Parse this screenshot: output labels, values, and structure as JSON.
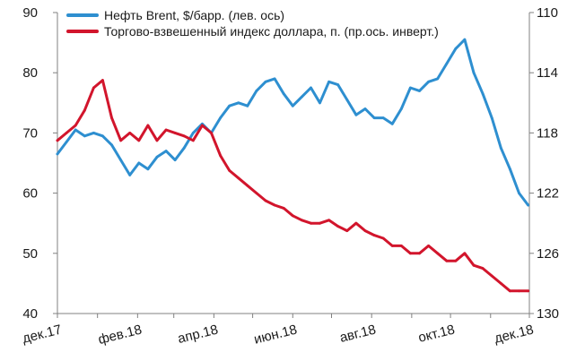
{
  "chart_data": {
    "type": "line",
    "title": "",
    "xlabel": "",
    "ylabel": "",
    "y2label": "",
    "x_ticks": [
      "дек.17",
      "фев.18",
      "апр.18",
      "июн.18",
      "авг.18",
      "окт.18",
      "дек.18"
    ],
    "y_left": {
      "ticks": [
        40,
        50,
        60,
        70,
        80,
        90
      ],
      "range": [
        40,
        90
      ]
    },
    "y_right": {
      "ticks": [
        110,
        114,
        118,
        122,
        126,
        130
      ],
      "range": [
        110,
        130
      ],
      "inverted": true
    },
    "legend_position": "top-left",
    "series": [
      {
        "name": "Нефть Brent, $/барр. (лев. ось)",
        "color": "#2e8fd0",
        "axis": "left",
        "x": [
          "2017-12-01",
          "2017-12-08",
          "2017-12-15",
          "2017-12-22",
          "2017-12-29",
          "2018-01-05",
          "2018-01-12",
          "2018-01-19",
          "2018-01-26",
          "2018-02-02",
          "2018-02-09",
          "2018-02-16",
          "2018-02-23",
          "2018-03-02",
          "2018-03-09",
          "2018-03-16",
          "2018-03-23",
          "2018-03-30",
          "2018-04-06",
          "2018-04-13",
          "2018-04-20",
          "2018-04-27",
          "2018-05-04",
          "2018-05-11",
          "2018-05-18",
          "2018-05-25",
          "2018-06-01",
          "2018-06-08",
          "2018-06-15",
          "2018-06-22",
          "2018-06-29",
          "2018-07-06",
          "2018-07-13",
          "2018-07-20",
          "2018-07-27",
          "2018-08-03",
          "2018-08-10",
          "2018-08-17",
          "2018-08-24",
          "2018-08-31",
          "2018-09-07",
          "2018-09-14",
          "2018-09-21",
          "2018-09-28",
          "2018-10-05",
          "2018-10-12",
          "2018-10-19",
          "2018-10-26",
          "2018-11-02",
          "2018-11-09",
          "2018-11-16",
          "2018-11-23",
          "2018-11-30"
        ],
        "values": [
          66.5,
          68.5,
          70.5,
          69.5,
          70.0,
          69.5,
          68.0,
          65.5,
          63.0,
          65.0,
          64.0,
          66.0,
          67.0,
          65.5,
          67.5,
          70.0,
          71.5,
          70.0,
          72.5,
          74.5,
          75.0,
          74.5,
          77.0,
          78.5,
          79.0,
          76.5,
          74.5,
          76.0,
          77.5,
          75.0,
          78.5,
          78.0,
          75.5,
          73.0,
          74.0,
          72.5,
          72.5,
          71.5,
          74.0,
          77.5,
          77.0,
          78.5,
          79.0,
          81.5,
          84.0,
          85.5,
          80.0,
          76.5,
          72.5,
          67.5,
          64.0,
          60.0,
          58.0
        ]
      },
      {
        "name": "Торгово-взвешенный индекс доллара, п. (пр.ось. инверт.)",
        "color": "#d2152c",
        "axis": "right",
        "x": [
          "2017-12-01",
          "2017-12-08",
          "2017-12-15",
          "2017-12-22",
          "2017-12-29",
          "2018-01-05",
          "2018-01-12",
          "2018-01-19",
          "2018-01-26",
          "2018-02-02",
          "2018-02-09",
          "2018-02-16",
          "2018-02-23",
          "2018-03-02",
          "2018-03-09",
          "2018-03-16",
          "2018-03-23",
          "2018-03-30",
          "2018-04-06",
          "2018-04-13",
          "2018-04-20",
          "2018-04-27",
          "2018-05-04",
          "2018-05-11",
          "2018-05-18",
          "2018-05-25",
          "2018-06-01",
          "2018-06-08",
          "2018-06-15",
          "2018-06-22",
          "2018-06-29",
          "2018-07-06",
          "2018-07-13",
          "2018-07-20",
          "2018-07-27",
          "2018-08-03",
          "2018-08-10",
          "2018-08-17",
          "2018-08-24",
          "2018-08-31",
          "2018-09-07",
          "2018-09-14",
          "2018-09-21",
          "2018-09-28",
          "2018-10-05",
          "2018-10-12",
          "2018-10-19",
          "2018-10-26",
          "2018-11-02",
          "2018-11-09",
          "2018-11-16",
          "2018-11-23",
          "2018-11-30"
        ],
        "values": [
          118.5,
          118.0,
          117.5,
          116.5,
          115.0,
          114.5,
          117.0,
          118.5,
          118.0,
          118.5,
          117.5,
          118.5,
          117.8,
          118.0,
          118.2,
          118.5,
          117.5,
          118.0,
          119.5,
          120.5,
          121.0,
          121.5,
          122.0,
          122.5,
          122.8,
          123.0,
          123.5,
          123.8,
          124.0,
          124.0,
          123.8,
          124.2,
          124.5,
          124.0,
          124.5,
          124.8,
          125.0,
          125.5,
          125.5,
          126.0,
          126.0,
          125.5,
          126.0,
          126.5,
          126.5,
          126.0,
          126.8,
          127.0,
          127.5,
          128.0,
          128.5,
          128.5,
          128.5
        ]
      }
    ]
  }
}
